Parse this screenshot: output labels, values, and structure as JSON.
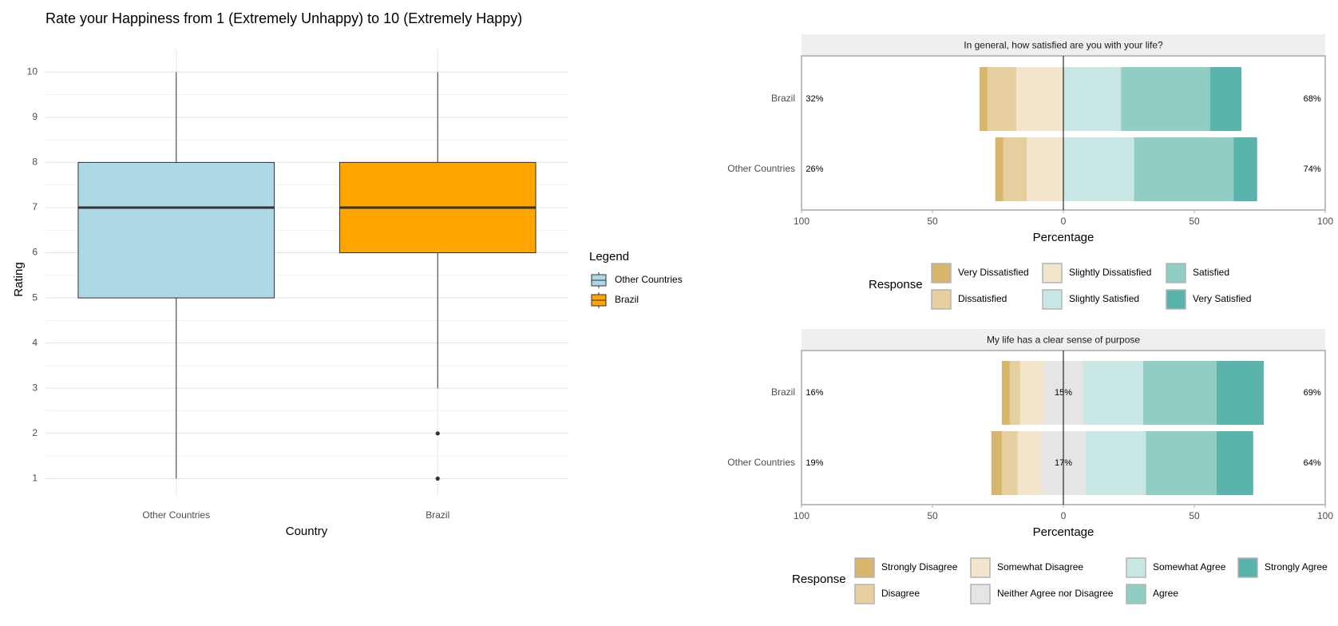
{
  "chart_data": [
    {
      "type": "boxplot",
      "title": "Rate your Happiness from 1 (Extremely Unhappy) to 10 (Extremely Happy)",
      "xlabel": "Country",
      "ylabel": "Rating",
      "ylim": [
        0.6,
        10.5
      ],
      "y_ticks": [
        1,
        2,
        3,
        4,
        5,
        6,
        7,
        8,
        9,
        10
      ],
      "grid": true,
      "legend": {
        "title": "Legend",
        "position": "right"
      },
      "categories": [
        "Other Countries",
        "Brazil"
      ],
      "series": [
        {
          "name": "Other Countries",
          "color": "#add8e6",
          "min": 1,
          "q1": 5,
          "median": 7,
          "q3": 8,
          "max": 10,
          "outliers": []
        },
        {
          "name": "Brazil",
          "color": "#ffa500",
          "min": 3,
          "q1": 6,
          "median": 7,
          "q3": 8,
          "max": 10,
          "outliers": [
            2,
            1
          ]
        }
      ]
    },
    {
      "type": "diverging-bar",
      "title": "In general, how satisfied are you with your life?",
      "xlabel": "Percentage",
      "xlim": [
        -100,
        100
      ],
      "x_ticks": [
        -100,
        -50,
        0,
        50,
        100
      ],
      "x_tick_labels": [
        "100",
        "50",
        "0",
        "50",
        "100"
      ],
      "legend": {
        "title": "Response",
        "position": "bottom"
      },
      "levels": [
        {
          "name": "Very Dissatisfied",
          "color": "#d7b56d"
        },
        {
          "name": "Dissatisfied",
          "color": "#e6cf9f"
        },
        {
          "name": "Slightly Dissatisfied",
          "color": "#f3e5cc"
        },
        {
          "name": "Slightly Satisfied",
          "color": "#c8e6e3"
        },
        {
          "name": "Satisfied",
          "color": "#90cdc3"
        },
        {
          "name": "Very Satisfied",
          "color": "#5ab4ac"
        }
      ],
      "neutral_index": -1,
      "rows": [
        {
          "name": "Brazil",
          "values": [
            3,
            11,
            18,
            22,
            34,
            12
          ],
          "low_label": "32%",
          "high_label": "68%",
          "neutral_label": ""
        },
        {
          "name": "Other Countries",
          "values": [
            3,
            9,
            14,
            27,
            38,
            9
          ],
          "low_label": "26%",
          "high_label": "74%",
          "neutral_label": ""
        }
      ],
      "legend_layout": [
        [
          "Very Dissatisfied",
          "Slightly Dissatisfied",
          "Satisfied"
        ],
        [
          "Dissatisfied",
          "Slightly Satisfied",
          "Very Satisfied"
        ]
      ]
    },
    {
      "type": "diverging-bar",
      "title": "My life has a clear sense of purpose",
      "xlabel": "Percentage",
      "xlim": [
        -100,
        100
      ],
      "x_ticks": [
        -100,
        -50,
        0,
        50,
        100
      ],
      "x_tick_labels": [
        "100",
        "50",
        "0",
        "50",
        "100"
      ],
      "legend": {
        "title": "Response",
        "position": "bottom"
      },
      "levels": [
        {
          "name": "Strongly Disagree",
          "color": "#d7b56d"
        },
        {
          "name": "Disagree",
          "color": "#e6cf9f"
        },
        {
          "name": "Somewhat Disagree",
          "color": "#f3e5cc"
        },
        {
          "name": "Neither Agree nor Disagree",
          "color": "#e5e5e5"
        },
        {
          "name": "Somewhat Agree",
          "color": "#c8e6e3"
        },
        {
          "name": "Agree",
          "color": "#90cdc3"
        },
        {
          "name": "Strongly Agree",
          "color": "#5ab4ac"
        }
      ],
      "neutral_index": 3,
      "rows": [
        {
          "name": "Brazil",
          "values": [
            3,
            4,
            9,
            15,
            23,
            28,
            18
          ],
          "low_label": "16%",
          "high_label": "69%",
          "neutral_label": "15%"
        },
        {
          "name": "Other Countries",
          "values": [
            4,
            6,
            9,
            17,
            23,
            27,
            14
          ],
          "low_label": "19%",
          "high_label": "64%",
          "neutral_label": "17%"
        }
      ],
      "legend_layout": [
        [
          "Strongly Disagree",
          "Somewhat Disagree",
          "Somewhat Agree",
          "Strongly Agree"
        ],
        [
          "Disagree",
          "Neither Agree nor Disagree",
          "Agree"
        ]
      ]
    }
  ]
}
